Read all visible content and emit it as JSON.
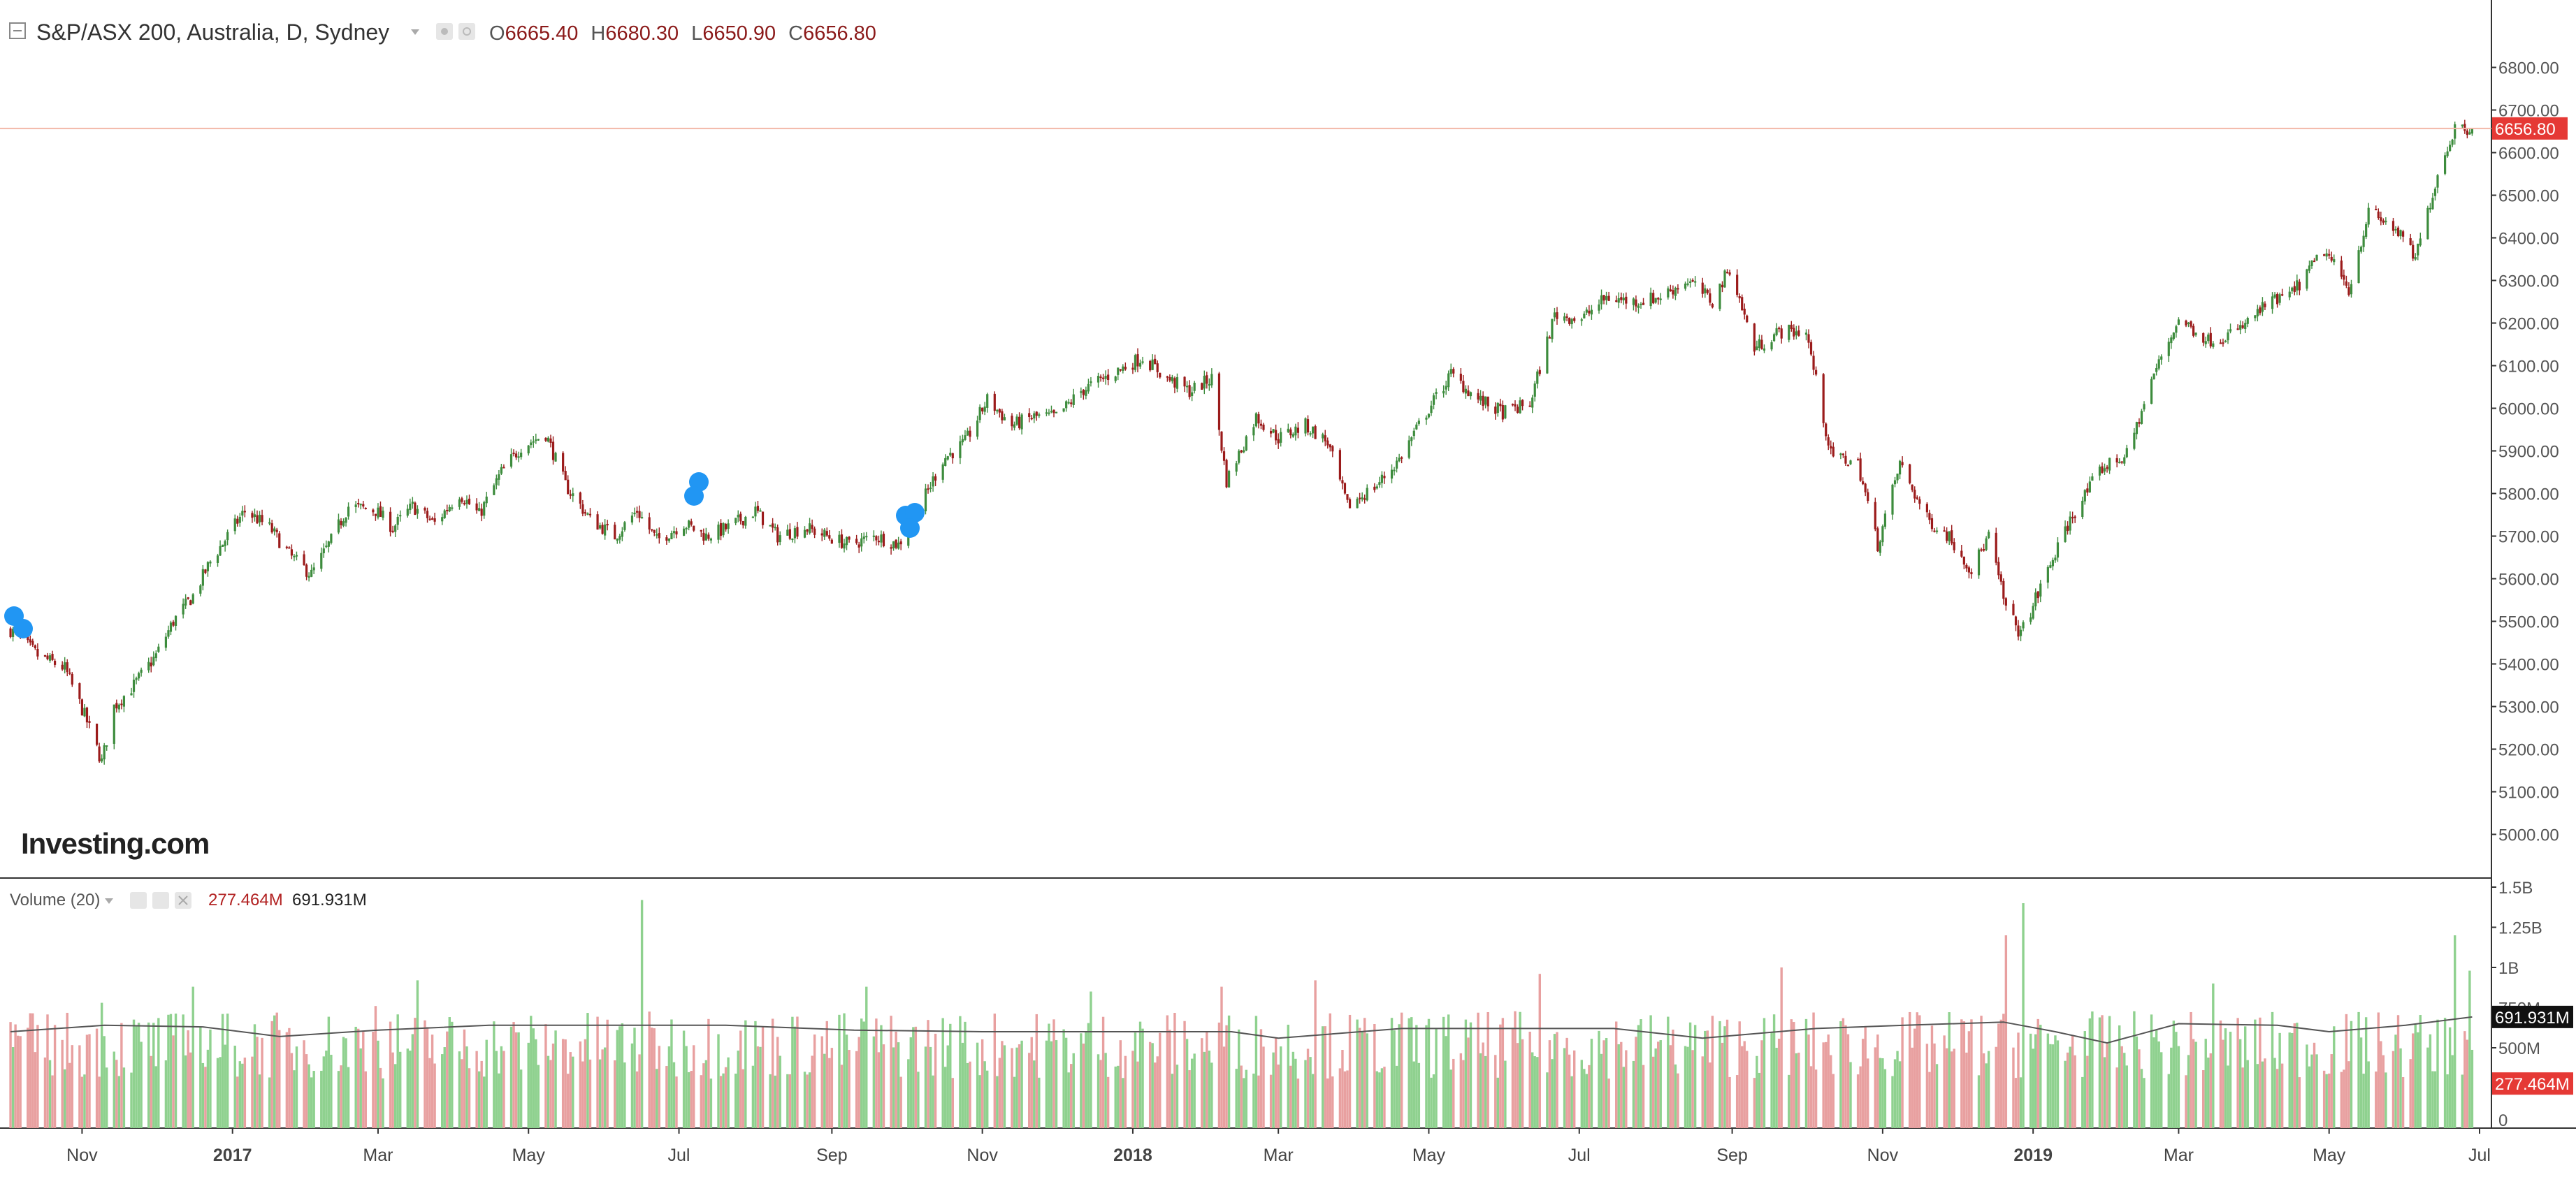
{
  "header": {
    "symbol": "S&P/ASX 200, Australia, D, Sydney",
    "ohlc": [
      {
        "label": "O",
        "value": "6665.40"
      },
      {
        "label": "H",
        "value": "6680.30"
      },
      {
        "label": "L",
        "value": "6650.90"
      },
      {
        "label": "C",
        "value": "6656.80"
      }
    ]
  },
  "watermark": "Investing.com",
  "volume_header": {
    "label": "Volume (20)",
    "volume": "277.464M",
    "ma": "691.931M"
  },
  "colors": {
    "up_candle": "#3d8c3d",
    "down_candle": "#9b1b1b",
    "up_volume": "#8fd18f",
    "down_volume": "#e8a0a0",
    "price_line": "#f2b8a8",
    "price_label_bg": "#e53935",
    "ma_label_bg": "#111111",
    "axis_text": "#555555"
  },
  "chart_data": [
    {
      "type": "candlestick",
      "title": "S&P/ASX 200, Australia, D, Sydney",
      "ylim": [
        4950,
        6850
      ],
      "y_ticks": [
        "5000.00",
        "5100.00",
        "5200.00",
        "5300.00",
        "5400.00",
        "5500.00",
        "5600.00",
        "5700.00",
        "5800.00",
        "5900.00",
        "6000.00",
        "6100.00",
        "6200.00",
        "6300.00",
        "6400.00",
        "6500.00",
        "6600.00",
        "6700.00",
        "6800.00"
      ],
      "last_price": "6656.80",
      "x_ticks": [
        "Nov",
        "2017",
        "Mar",
        "May",
        "Jul",
        "Sep",
        "Nov",
        "2018",
        "Mar",
        "May",
        "Jul",
        "Sep",
        "Nov",
        "2019",
        "Mar",
        "May",
        "Jul"
      ],
      "x_range": [
        "2016-10-01",
        "2019-07-01"
      ],
      "close_series": [
        {
          "date": "2016-10-03",
          "close": 5480
        },
        {
          "date": "2016-10-14",
          "close": 5420
        },
        {
          "date": "2016-10-25",
          "close": 5390
        },
        {
          "date": "2016-11-02",
          "close": 5280
        },
        {
          "date": "2016-11-09",
          "close": 5170
        },
        {
          "date": "2016-11-14",
          "close": 5300
        },
        {
          "date": "2016-11-22",
          "close": 5350
        },
        {
          "date": "2016-12-01",
          "close": 5420
        },
        {
          "date": "2016-12-08",
          "close": 5500
        },
        {
          "date": "2016-12-16",
          "close": 5560
        },
        {
          "date": "2016-12-23",
          "close": 5640
        },
        {
          "date": "2017-01-06",
          "close": 5760
        },
        {
          "date": "2017-01-16",
          "close": 5720
        },
        {
          "date": "2017-01-25",
          "close": 5650
        },
        {
          "date": "2017-02-02",
          "close": 5610
        },
        {
          "date": "2017-02-10",
          "close": 5690
        },
        {
          "date": "2017-02-17",
          "close": 5770
        },
        {
          "date": "2017-02-28",
          "close": 5760
        },
        {
          "date": "2017-03-07",
          "close": 5720
        },
        {
          "date": "2017-03-15",
          "close": 5770
        },
        {
          "date": "2017-03-24",
          "close": 5730
        },
        {
          "date": "2017-04-03",
          "close": 5800
        },
        {
          "date": "2017-04-11",
          "close": 5750
        },
        {
          "date": "2017-04-20",
          "close": 5850
        },
        {
          "date": "2017-04-28",
          "close": 5910
        },
        {
          "date": "2017-05-08",
          "close": 5940
        },
        {
          "date": "2017-05-16",
          "close": 5820
        },
        {
          "date": "2017-05-26",
          "close": 5740
        },
        {
          "date": "2017-06-05",
          "close": 5700
        },
        {
          "date": "2017-06-14",
          "close": 5760
        },
        {
          "date": "2017-06-22",
          "close": 5690
        },
        {
          "date": "2017-07-03",
          "close": 5730
        },
        {
          "date": "2017-07-12",
          "close": 5700
        },
        {
          "date": "2017-07-21",
          "close": 5720
        },
        {
          "date": "2017-08-01",
          "close": 5760
        },
        {
          "date": "2017-08-10",
          "close": 5700
        },
        {
          "date": "2017-08-21",
          "close": 5720
        },
        {
          "date": "2017-08-30",
          "close": 5700
        },
        {
          "date": "2017-09-08",
          "close": 5680
        },
        {
          "date": "2017-09-19",
          "close": 5700
        },
        {
          "date": "2017-09-28",
          "close": 5680
        },
        {
          "date": "2017-10-06",
          "close": 5760
        },
        {
          "date": "2017-10-16",
          "close": 5880
        },
        {
          "date": "2017-10-25",
          "close": 5920
        },
        {
          "date": "2017-11-03",
          "close": 6020
        },
        {
          "date": "2017-11-13",
          "close": 5960
        },
        {
          "date": "2017-11-22",
          "close": 5980
        },
        {
          "date": "2017-12-01",
          "close": 5980
        },
        {
          "date": "2017-12-11",
          "close": 6040
        },
        {
          "date": "2017-12-20",
          "close": 6070
        },
        {
          "date": "2018-01-05",
          "close": 6120
        },
        {
          "date": "2018-01-15",
          "close": 6070
        },
        {
          "date": "2018-01-24",
          "close": 6040
        },
        {
          "date": "2018-02-02",
          "close": 6070
        },
        {
          "date": "2018-02-08",
          "close": 5830
        },
        {
          "date": "2018-02-20",
          "close": 5980
        },
        {
          "date": "2018-03-01",
          "close": 5930
        },
        {
          "date": "2018-03-12",
          "close": 5960
        },
        {
          "date": "2018-03-21",
          "close": 5920
        },
        {
          "date": "2018-03-29",
          "close": 5770
        },
        {
          "date": "2018-04-10",
          "close": 5820
        },
        {
          "date": "2018-04-19",
          "close": 5880
        },
        {
          "date": "2018-04-30",
          "close": 5990
        },
        {
          "date": "2018-05-10",
          "close": 6080
        },
        {
          "date": "2018-05-21",
          "close": 6020
        },
        {
          "date": "2018-05-31",
          "close": 5990
        },
        {
          "date": "2018-06-11",
          "close": 6010
        },
        {
          "date": "2018-06-21",
          "close": 6220
        },
        {
          "date": "2018-07-02",
          "close": 6210
        },
        {
          "date": "2018-07-12",
          "close": 6260
        },
        {
          "date": "2018-07-23",
          "close": 6250
        },
        {
          "date": "2018-08-02",
          "close": 6260
        },
        {
          "date": "2018-08-14",
          "close": 6300
        },
        {
          "date": "2018-08-24",
          "close": 6250
        },
        {
          "date": "2018-08-31",
          "close": 6330
        },
        {
          "date": "2018-09-10",
          "close": 6140
        },
        {
          "date": "2018-09-20",
          "close": 6180
        },
        {
          "date": "2018-10-01",
          "close": 6180
        },
        {
          "date": "2018-10-11",
          "close": 5890
        },
        {
          "date": "2018-10-22",
          "close": 5870
        },
        {
          "date": "2018-10-30",
          "close": 5680
        },
        {
          "date": "2018-11-08",
          "close": 5870
        },
        {
          "date": "2018-11-19",
          "close": 5740
        },
        {
          "date": "2018-11-28",
          "close": 5700
        },
        {
          "date": "2018-12-07",
          "close": 5620
        },
        {
          "date": "2018-12-14",
          "close": 5700
        },
        {
          "date": "2018-12-21",
          "close": 5530
        },
        {
          "date": "2018-12-27",
          "close": 5470
        },
        {
          "date": "2019-01-07",
          "close": 5620
        },
        {
          "date": "2019-01-17",
          "close": 5750
        },
        {
          "date": "2019-01-29",
          "close": 5860
        },
        {
          "date": "2019-02-08",
          "close": 5890
        },
        {
          "date": "2019-02-19",
          "close": 6080
        },
        {
          "date": "2019-03-01",
          "close": 6210
        },
        {
          "date": "2019-03-13",
          "close": 6160
        },
        {
          "date": "2019-03-25",
          "close": 6180
        },
        {
          "date": "2019-04-05",
          "close": 6240
        },
        {
          "date": "2019-04-16",
          "close": 6270
        },
        {
          "date": "2019-04-29",
          "close": 6370
        },
        {
          "date": "2019-05-09",
          "close": 6280
        },
        {
          "date": "2019-05-17",
          "close": 6460
        },
        {
          "date": "2019-05-28",
          "close": 6420
        },
        {
          "date": "2019-06-05",
          "close": 6350
        },
        {
          "date": "2019-06-14",
          "close": 6550
        },
        {
          "date": "2019-06-21",
          "close": 6660
        },
        {
          "date": "2019-06-28",
          "close": 6656.8
        }
      ]
    },
    {
      "type": "bar",
      "title": "Volume (20)",
      "ylim": [
        0,
        1500
      ],
      "y_unit": "M",
      "y_ticks": [
        "0",
        "500M",
        "750M",
        "1B",
        "1.25B",
        "1.5B"
      ],
      "last_volume": "277.464M",
      "ma_value": "691.931M",
      "baseline_volume_m": 560,
      "spikes": [
        {
          "date": "2016-11-09",
          "value": 780
        },
        {
          "date": "2016-12-16",
          "value": 880
        },
        {
          "date": "2017-02-28",
          "value": 760
        },
        {
          "date": "2017-03-17",
          "value": 920
        },
        {
          "date": "2017-06-16",
          "value": 1420
        },
        {
          "date": "2017-09-15",
          "value": 880
        },
        {
          "date": "2017-12-15",
          "value": 850
        },
        {
          "date": "2018-02-06",
          "value": 880
        },
        {
          "date": "2018-03-16",
          "value": 920
        },
        {
          "date": "2018-06-15",
          "value": 960
        },
        {
          "date": "2018-09-21",
          "value": 1000
        },
        {
          "date": "2018-12-21",
          "value": 1200
        },
        {
          "date": "2018-12-28",
          "value": 1400
        },
        {
          "date": "2019-03-15",
          "value": 900
        },
        {
          "date": "2019-06-21",
          "value": 1200
        },
        {
          "date": "2019-06-27",
          "value": 980
        }
      ],
      "ma_series": [
        {
          "date": "2016-10-03",
          "value": 600
        },
        {
          "date": "2016-11-10",
          "value": 640
        },
        {
          "date": "2016-12-20",
          "value": 630
        },
        {
          "date": "2017-01-20",
          "value": 570
        },
        {
          "date": "2017-03-01",
          "value": 610
        },
        {
          "date": "2017-04-15",
          "value": 640
        },
        {
          "date": "2017-06-01",
          "value": 640
        },
        {
          "date": "2017-07-20",
          "value": 640
        },
        {
          "date": "2017-09-10",
          "value": 610
        },
        {
          "date": "2017-11-01",
          "value": 600
        },
        {
          "date": "2017-12-20",
          "value": 600
        },
        {
          "date": "2018-02-10",
          "value": 600
        },
        {
          "date": "2018-03-01",
          "value": 560
        },
        {
          "date": "2018-04-20",
          "value": 620
        },
        {
          "date": "2018-06-01",
          "value": 620
        },
        {
          "date": "2018-07-15",
          "value": 620
        },
        {
          "date": "2018-08-20",
          "value": 560
        },
        {
          "date": "2018-10-05",
          "value": 620
        },
        {
          "date": "2018-11-10",
          "value": 640
        },
        {
          "date": "2018-12-20",
          "value": 660
        },
        {
          "date": "2019-01-10",
          "value": 600
        },
        {
          "date": "2019-01-31",
          "value": 530
        },
        {
          "date": "2019-03-01",
          "value": 650
        },
        {
          "date": "2019-04-10",
          "value": 640
        },
        {
          "date": "2019-05-01",
          "value": 600
        },
        {
          "date": "2019-06-01",
          "value": 640
        },
        {
          "date": "2019-06-28",
          "value": 691.931
        }
      ]
    }
  ]
}
